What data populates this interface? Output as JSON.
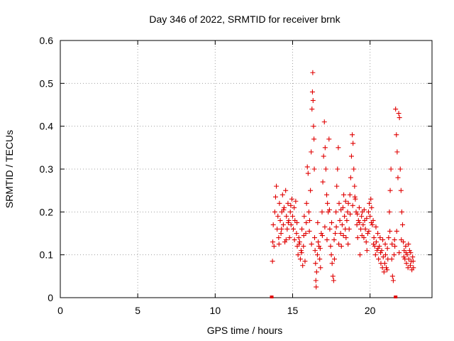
{
  "chart_data": {
    "type": "scatter",
    "title": "Day 346 of 2022, SRMTID for receiver brnk",
    "xlabel": "GPS time / hours",
    "ylabel": "SRMTID / TECUs",
    "xlim": [
      0,
      24
    ],
    "ylim": [
      0,
      0.6
    ],
    "x_ticks": [
      0,
      5,
      10,
      15,
      20
    ],
    "x_tick_labels": [
      "0",
      "5",
      "10",
      "15",
      "20"
    ],
    "y_ticks": [
      0,
      0.1,
      0.2,
      0.3,
      0.4,
      0.5,
      0.6
    ],
    "y_tick_labels": [
      "0",
      "0.1",
      "0.2",
      "0.3",
      "0.4",
      "0.5",
      "0.6"
    ],
    "grid": true,
    "marker": "+",
    "series": [
      {
        "name": "SRMTID",
        "color": "#e00000",
        "note": "dense cloud of points between ~13.5 h and ~22.9 h; representative sample",
        "points": [
          [
            13.65,
            0
          ],
          [
            21.65,
            0
          ],
          [
            13.7,
            0.085
          ],
          [
            13.72,
            0.13
          ],
          [
            13.75,
            0.17
          ],
          [
            13.8,
            0.12
          ],
          [
            13.85,
            0.2
          ],
          [
            13.9,
            0.235
          ],
          [
            13.95,
            0.26
          ],
          [
            14.0,
            0.16
          ],
          [
            14.05,
            0.19
          ],
          [
            14.1,
            0.14
          ],
          [
            14.15,
            0.22
          ],
          [
            14.2,
            0.18
          ],
          [
            14.25,
            0.15
          ],
          [
            14.3,
            0.2
          ],
          [
            14.35,
            0.24
          ],
          [
            14.4,
            0.17
          ],
          [
            14.45,
            0.21
          ],
          [
            14.5,
            0.13
          ],
          [
            14.55,
            0.25
          ],
          [
            14.6,
            0.19
          ],
          [
            14.65,
            0.16
          ],
          [
            14.7,
            0.22
          ],
          [
            14.75,
            0.18
          ],
          [
            14.8,
            0.14
          ],
          [
            14.85,
            0.2
          ],
          [
            14.9,
            0.17
          ],
          [
            14.95,
            0.23
          ],
          [
            15.0,
            0.19
          ],
          [
            15.05,
            0.16
          ],
          [
            15.1,
            0.21
          ],
          [
            15.15,
            0.18
          ],
          [
            15.2,
            0.225
          ],
          [
            15.25,
            0.15
          ],
          [
            15.3,
            0.12
          ],
          [
            15.35,
            0.1
          ],
          [
            15.4,
            0.14
          ],
          [
            15.45,
            0.13
          ],
          [
            15.5,
            0.09
          ],
          [
            15.55,
            0.11
          ],
          [
            15.6,
            0.16
          ],
          [
            15.65,
            0.075
          ],
          [
            15.7,
            0.12
          ],
          [
            15.75,
            0.19
          ],
          [
            15.8,
            0.085
          ],
          [
            15.85,
            0.15
          ],
          [
            15.9,
            0.22
          ],
          [
            15.95,
            0.305
          ],
          [
            16.0,
            0.29
          ],
          [
            16.05,
            0.2
          ],
          [
            16.1,
            0.18
          ],
          [
            16.15,
            0.25
          ],
          [
            16.2,
            0.34
          ],
          [
            16.25,
            0.44
          ],
          [
            16.28,
            0.48
          ],
          [
            16.3,
            0.525
          ],
          [
            16.32,
            0.46
          ],
          [
            16.35,
            0.4
          ],
          [
            16.38,
            0.37
          ],
          [
            16.4,
            0.3
          ],
          [
            16.42,
            0.14
          ],
          [
            16.45,
            0.11
          ],
          [
            16.48,
            0.08
          ],
          [
            16.5,
            0.04
          ],
          [
            16.52,
            0.025
          ],
          [
            16.55,
            0.06
          ],
          [
            16.6,
            0.1
          ],
          [
            16.65,
            0.13
          ],
          [
            16.7,
            0.12
          ],
          [
            16.75,
            0.09
          ],
          [
            16.8,
            0.07
          ],
          [
            16.85,
            0.15
          ],
          [
            16.9,
            0.2
          ],
          [
            16.95,
            0.27
          ],
          [
            17.0,
            0.33
          ],
          [
            17.05,
            0.41
          ],
          [
            17.1,
            0.35
          ],
          [
            17.15,
            0.3
          ],
          [
            17.2,
            0.24
          ],
          [
            17.25,
            0.22
          ],
          [
            17.3,
            0.2
          ],
          [
            17.35,
            0.37
          ],
          [
            17.4,
            0.16
          ],
          [
            17.45,
            0.12
          ],
          [
            17.5,
            0.1
          ],
          [
            17.55,
            0.08
          ],
          [
            17.6,
            0.05
          ],
          [
            17.65,
            0.04
          ],
          [
            17.7,
            0.09
          ],
          [
            17.75,
            0.15
          ],
          [
            17.8,
            0.2
          ],
          [
            17.85,
            0.26
          ],
          [
            17.9,
            0.3
          ],
          [
            17.95,
            0.35
          ],
          [
            18.0,
            0.22
          ],
          [
            18.05,
            0.18
          ],
          [
            18.1,
            0.15
          ],
          [
            18.15,
            0.12
          ],
          [
            18.2,
            0.17
          ],
          [
            18.25,
            0.21
          ],
          [
            18.3,
            0.24
          ],
          [
            18.35,
            0.19
          ],
          [
            18.4,
            0.16
          ],
          [
            18.45,
            0.14
          ],
          [
            18.5,
            0.18
          ],
          [
            18.55,
            0.2
          ],
          [
            18.6,
            0.22
          ],
          [
            18.65,
            0.16
          ],
          [
            18.7,
            0.24
          ],
          [
            18.75,
            0.28
          ],
          [
            18.8,
            0.33
          ],
          [
            18.85,
            0.38
          ],
          [
            18.9,
            0.36
          ],
          [
            18.95,
            0.3
          ],
          [
            19.0,
            0.26
          ],
          [
            19.05,
            0.23
          ],
          [
            19.1,
            0.2
          ],
          [
            19.15,
            0.17
          ],
          [
            19.2,
            0.14
          ],
          [
            19.25,
            0.18
          ],
          [
            19.3,
            0.21
          ],
          [
            19.35,
            0.1
          ],
          [
            19.4,
            0.16
          ],
          [
            19.45,
            0.19
          ],
          [
            19.5,
            0.2
          ],
          [
            19.55,
            0.17
          ],
          [
            19.6,
            0.14
          ],
          [
            19.65,
            0.18
          ],
          [
            19.7,
            0.16
          ],
          [
            19.75,
            0.13
          ],
          [
            19.8,
            0.11
          ],
          [
            19.85,
            0.15
          ],
          [
            19.9,
            0.2
          ],
          [
            19.95,
            0.22
          ],
          [
            20.0,
            0.19
          ],
          [
            20.05,
            0.23
          ],
          [
            20.1,
            0.21
          ],
          [
            20.15,
            0.17
          ],
          [
            20.2,
            0.18
          ],
          [
            20.25,
            0.14
          ],
          [
            20.3,
            0.12
          ],
          [
            20.35,
            0.1
          ],
          [
            20.4,
            0.13
          ],
          [
            20.45,
            0.11
          ],
          [
            20.5,
            0.15
          ],
          [
            20.55,
            0.09
          ],
          [
            20.6,
            0.12
          ],
          [
            20.65,
            0.14
          ],
          [
            20.7,
            0.08
          ],
          [
            20.75,
            0.11
          ],
          [
            20.8,
            0.07
          ],
          [
            20.85,
            0.095
          ],
          [
            20.9,
            0.06
          ],
          [
            20.95,
            0.08
          ],
          [
            21.0,
            0.1
          ],
          [
            21.05,
            0.07
          ],
          [
            21.1,
            0.065
          ],
          [
            21.15,
            0.09
          ],
          [
            21.2,
            0.14
          ],
          [
            21.25,
            0.2
          ],
          [
            21.3,
            0.25
          ],
          [
            21.35,
            0.3
          ],
          [
            21.4,
            0.09
          ],
          [
            21.45,
            0.05
          ],
          [
            21.5,
            0.04
          ],
          [
            21.55,
            0.1
          ],
          [
            21.6,
            0.12
          ],
          [
            21.65,
            0.44
          ],
          [
            21.7,
            0.38
          ],
          [
            21.75,
            0.34
          ],
          [
            21.8,
            0.28
          ],
          [
            21.85,
            0.43
          ],
          [
            21.9,
            0.42
          ],
          [
            21.95,
            0.3
          ],
          [
            22.0,
            0.25
          ],
          [
            22.05,
            0.2
          ],
          [
            22.1,
            0.17
          ],
          [
            22.15,
            0.13
          ],
          [
            22.2,
            0.11
          ],
          [
            22.25,
            0.09
          ],
          [
            22.3,
            0.12
          ],
          [
            22.35,
            0.08
          ],
          [
            22.4,
            0.1
          ],
          [
            22.45,
            0.07
          ],
          [
            22.5,
            0.09
          ],
          [
            22.55,
            0.11
          ],
          [
            22.6,
            0.075
          ],
          [
            22.65,
            0.085
          ],
          [
            22.7,
            0.065
          ],
          [
            22.75,
            0.095
          ],
          [
            22.8,
            0.07
          ],
          [
            14.12,
            0.125
          ],
          [
            14.28,
            0.16
          ],
          [
            14.42,
            0.205
          ],
          [
            14.58,
            0.135
          ],
          [
            14.72,
            0.175
          ],
          [
            14.88,
            0.215
          ],
          [
            15.12,
            0.135
          ],
          [
            15.28,
            0.175
          ],
          [
            15.42,
            0.125
          ],
          [
            15.58,
            0.105
          ],
          [
            15.72,
            0.145
          ],
          [
            15.88,
            0.175
          ],
          [
            16.08,
            0.155
          ],
          [
            16.22,
            0.125
          ],
          [
            16.62,
            0.175
          ],
          [
            16.78,
            0.115
          ],
          [
            16.92,
            0.145
          ],
          [
            17.08,
            0.165
          ],
          [
            17.22,
            0.135
          ],
          [
            17.38,
            0.205
          ],
          [
            17.52,
            0.175
          ],
          [
            17.68,
            0.135
          ],
          [
            17.82,
            0.165
          ],
          [
            17.98,
            0.125
          ],
          [
            18.12,
            0.205
          ],
          [
            18.28,
            0.145
          ],
          [
            18.42,
            0.225
          ],
          [
            18.58,
            0.125
          ],
          [
            18.72,
            0.195
          ],
          [
            18.88,
            0.215
          ],
          [
            19.02,
            0.235
          ],
          [
            19.18,
            0.195
          ],
          [
            19.32,
            0.175
          ],
          [
            19.48,
            0.145
          ],
          [
            19.62,
            0.205
          ],
          [
            19.78,
            0.185
          ],
          [
            19.92,
            0.155
          ],
          [
            20.08,
            0.175
          ],
          [
            20.22,
            0.125
          ],
          [
            20.38,
            0.165
          ],
          [
            20.52,
            0.115
          ],
          [
            20.68,
            0.105
          ],
          [
            20.82,
            0.135
          ],
          [
            20.98,
            0.125
          ],
          [
            21.12,
            0.115
          ],
          [
            21.28,
            0.155
          ],
          [
            21.42,
            0.125
          ],
          [
            21.58,
            0.135
          ],
          [
            21.72,
            0.155
          ],
          [
            21.88,
            0.105
          ],
          [
            22.02,
            0.135
          ],
          [
            22.18,
            0.095
          ],
          [
            22.32,
            0.105
          ],
          [
            22.48,
            0.125
          ],
          [
            22.62,
            0.105
          ],
          [
            22.78,
            0.085
          ]
        ]
      }
    ]
  }
}
